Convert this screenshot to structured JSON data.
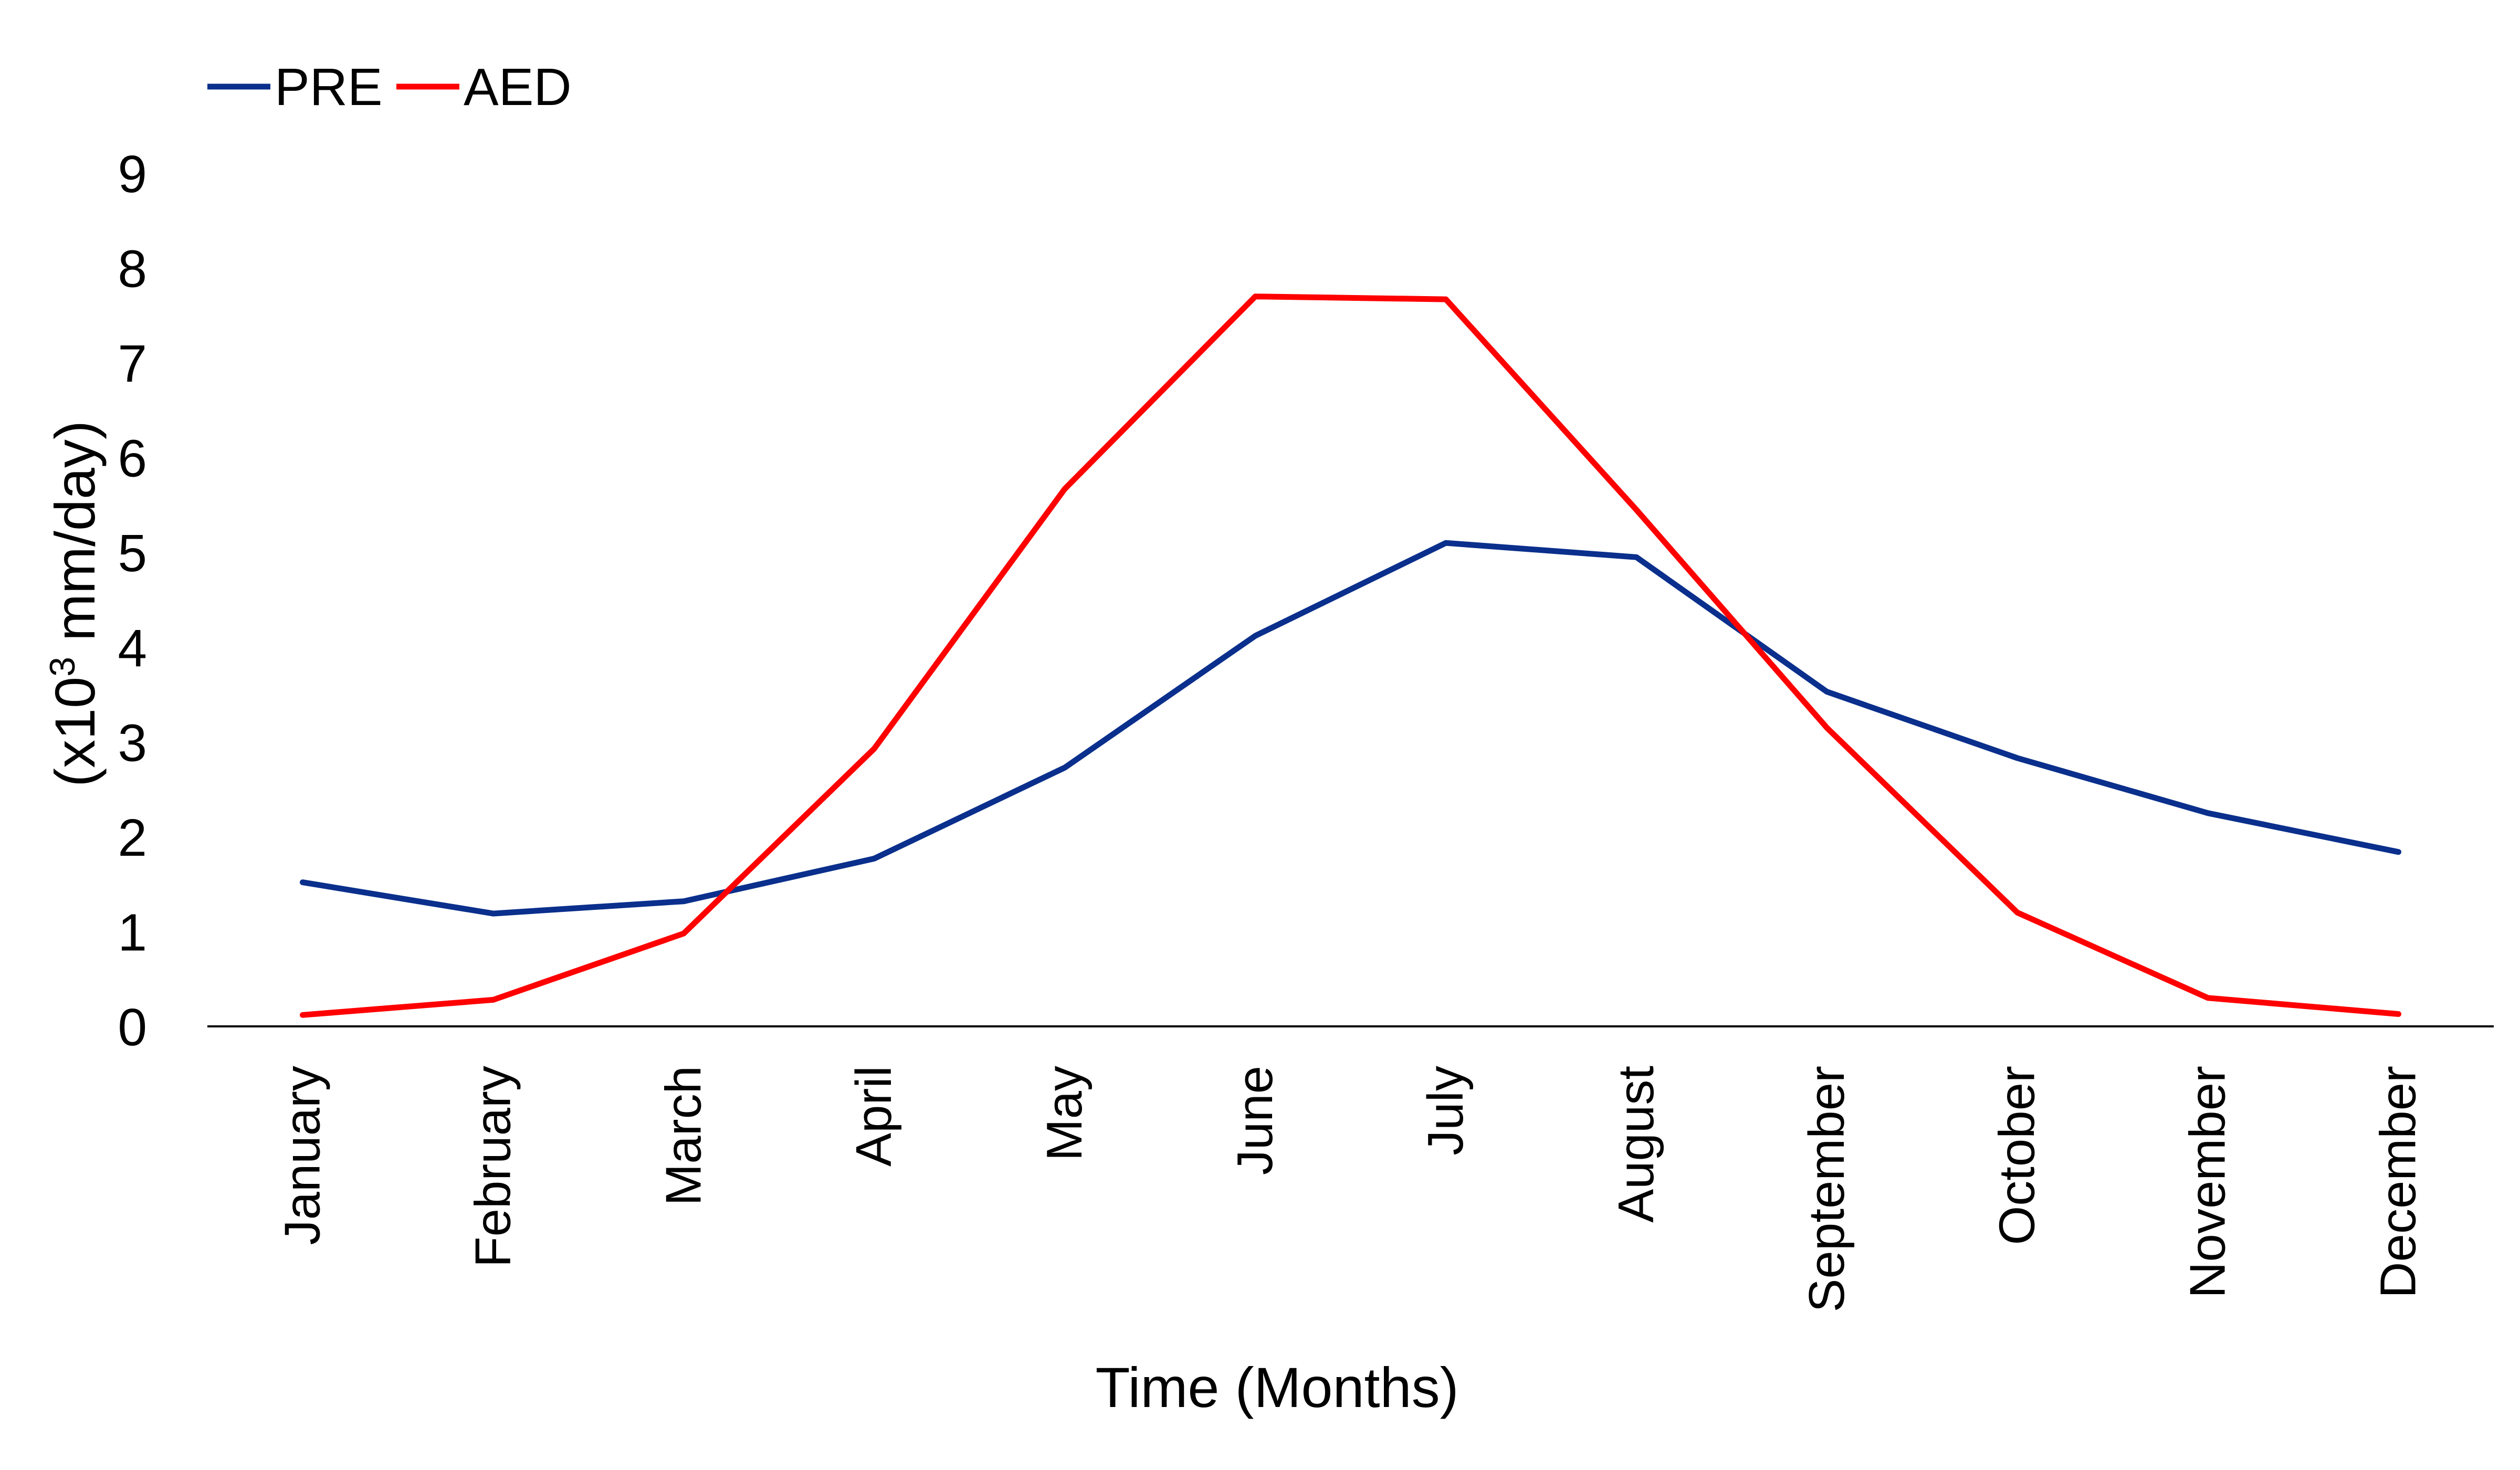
{
  "chart_data": {
    "type": "line",
    "title": "",
    "xlabel": "Time (Months)",
    "ylabel": {
      "prefix": "(x10",
      "superscript": "3",
      "suffix": " mm/day)"
    },
    "categories": [
      "January",
      "February",
      "March",
      "April",
      "May",
      "June",
      "July",
      "August",
      "September",
      "October",
      "November",
      "December"
    ],
    "ylim": [
      0,
      9
    ],
    "yticks": [
      0,
      1,
      2,
      3,
      4,
      5,
      6,
      7,
      8,
      9
    ],
    "grid": false,
    "legend_position": "top-left",
    "series": [
      {
        "name": "PRE",
        "color": "#0a2f8c",
        "values": [
          1.52,
          1.19,
          1.32,
          1.77,
          2.73,
          4.12,
          5.1,
          4.95,
          3.53,
          2.83,
          2.25,
          1.84
        ]
      },
      {
        "name": "AED",
        "color": "#ff0000",
        "values": [
          0.12,
          0.28,
          0.98,
          2.93,
          5.67,
          7.7,
          7.67,
          5.45,
          3.15,
          1.2,
          0.3,
          0.13
        ]
      }
    ]
  }
}
